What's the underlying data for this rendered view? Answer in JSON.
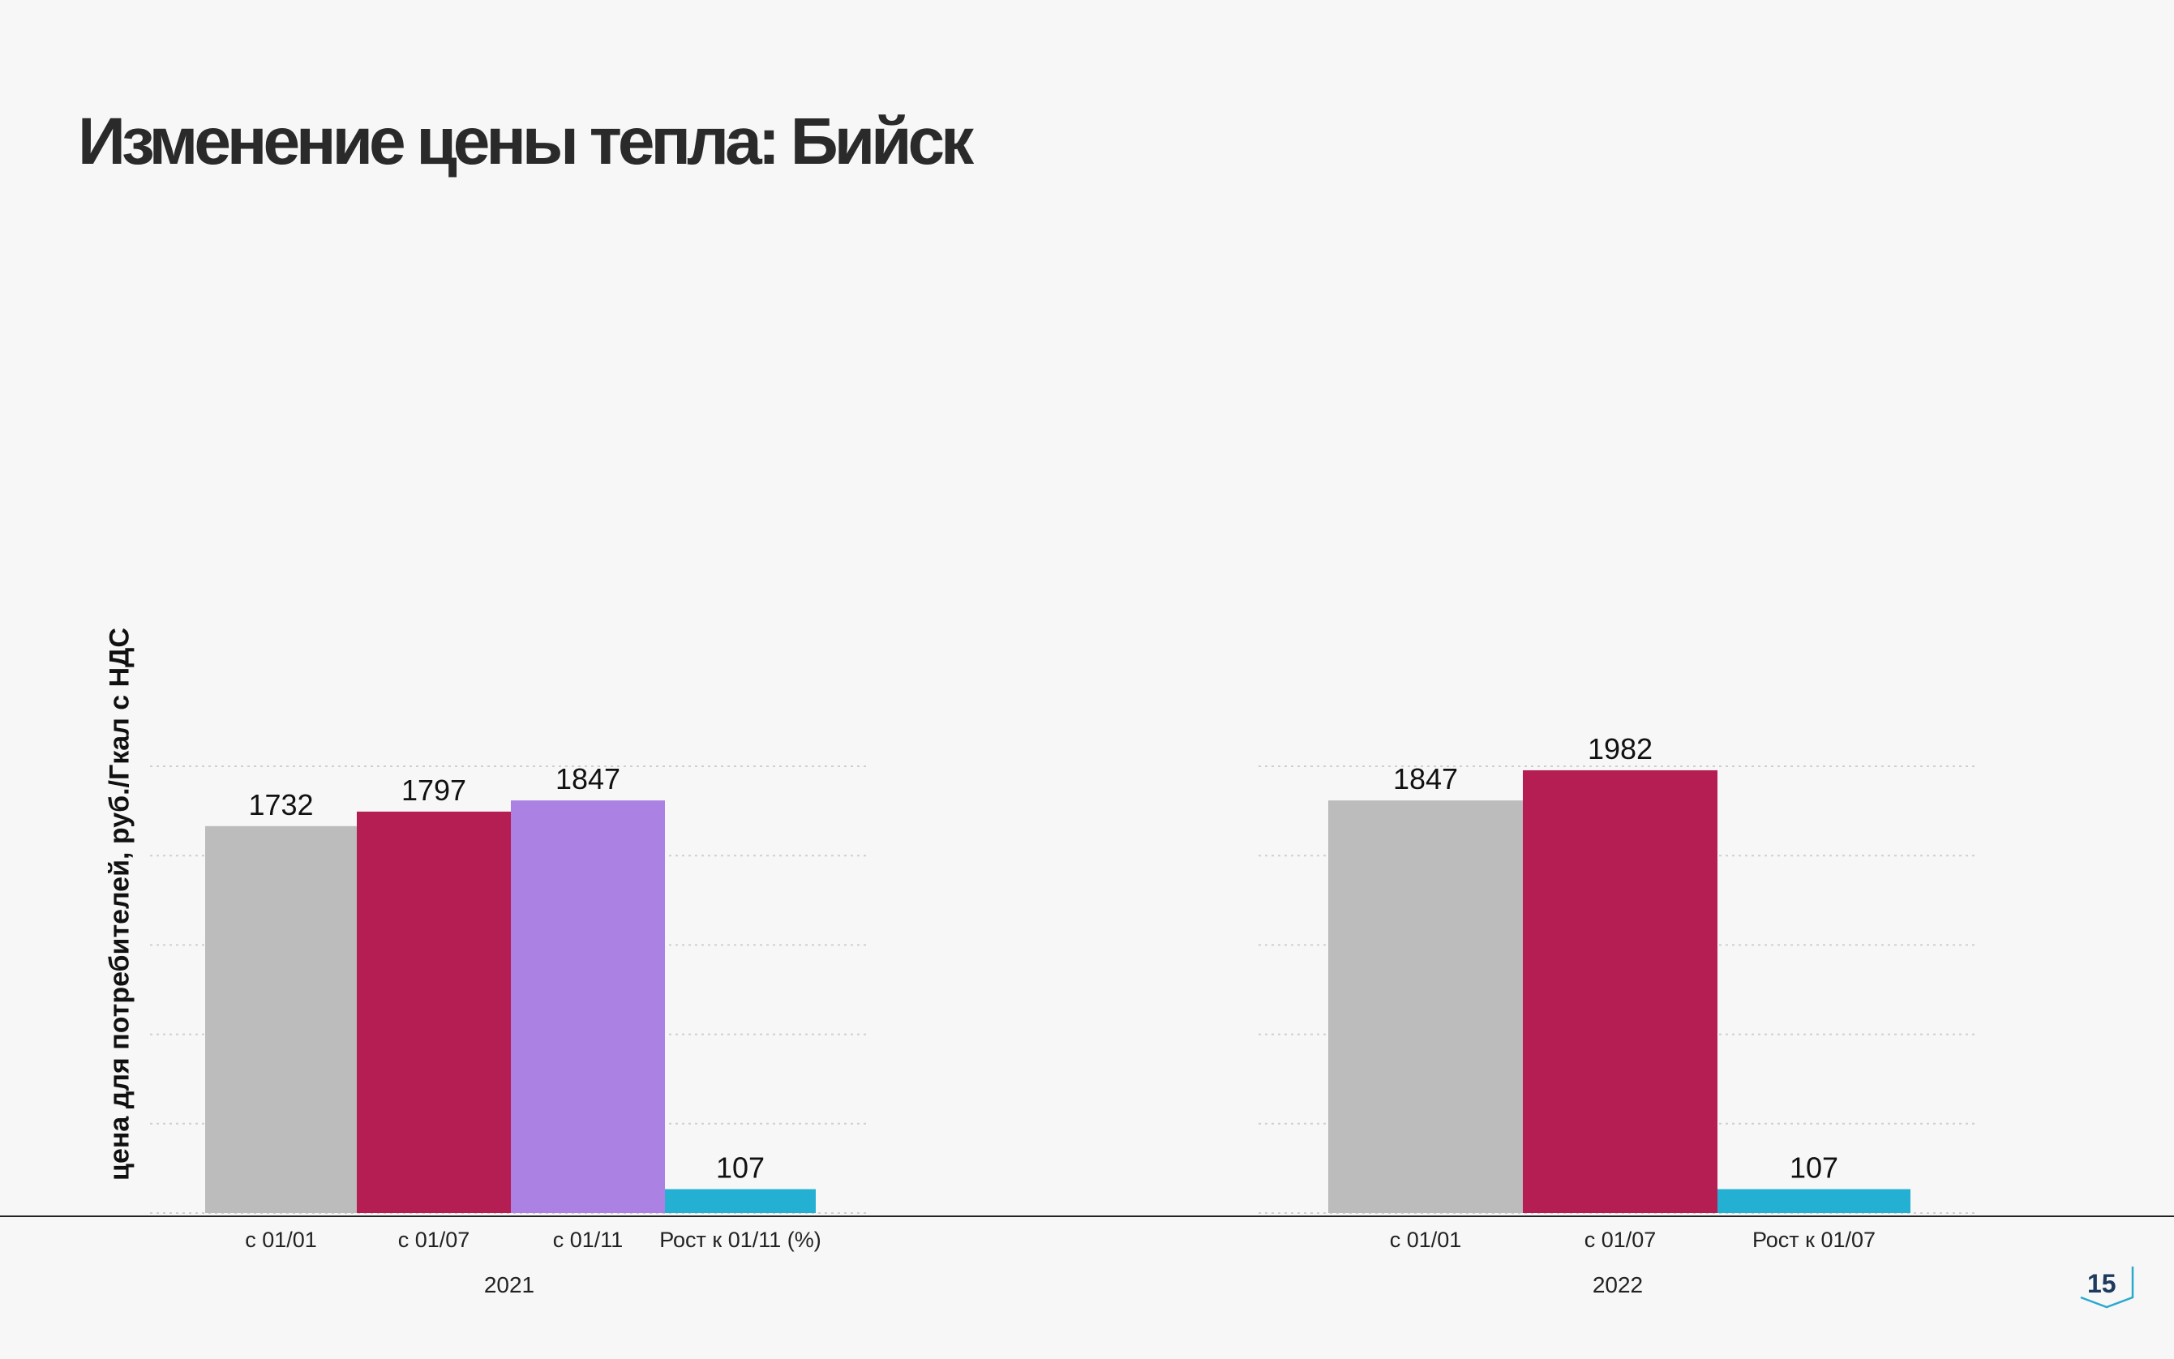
{
  "slide": {
    "title": "Изменение цены тепла: Бийск",
    "page_number": "15"
  },
  "chart_data": {
    "type": "bar",
    "ylabel": "цена для потребителей, руб./Гкал с НДС",
    "ylim": [
      0,
      2200
    ],
    "grid": true,
    "groups": [
      {
        "name": "2021",
        "bars": [
          {
            "label": "с 01/01",
            "value": 1732,
            "color": "#bcbcbc",
            "value_label": "1732"
          },
          {
            "label": "с 01/07",
            "value": 1797,
            "color": "#b51e52",
            "value_label": "1797"
          },
          {
            "label": "с 01/11",
            "value": 1847,
            "color": "#ab82e3",
            "value_label": "1847"
          },
          {
            "label": "Рост к 01/11 (%)",
            "value": 107,
            "color": "#23b0d3",
            "value_label": "107"
          }
        ]
      },
      {
        "name": "2022",
        "bars": [
          {
            "label": "с 01/01",
            "value": 1847,
            "color": "#bcbcbc",
            "value_label": "1847"
          },
          {
            "label": "с 01/07",
            "value": 1982,
            "color": "#b51e52",
            "value_label": "1982"
          },
          {
            "label": "Рост к 01/07",
            "value": 107,
            "color": "#23b0d3",
            "value_label": "107"
          }
        ]
      }
    ]
  }
}
